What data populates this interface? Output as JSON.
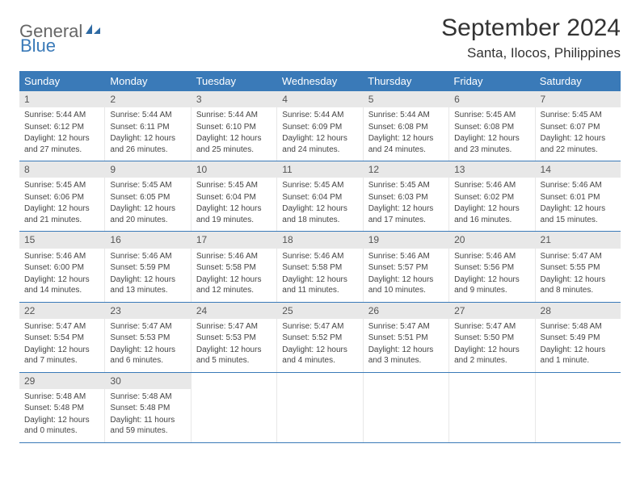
{
  "logo": {
    "word1": "General",
    "word2": "Blue"
  },
  "title": "September 2024",
  "location": "Santa, Ilocos, Philippines",
  "colors": {
    "header_bg": "#3a7ab8",
    "header_fg": "#ffffff",
    "daynum_bg": "#e8e8e8",
    "border": "#3a7ab8",
    "text": "#333333"
  },
  "day_names": [
    "Sunday",
    "Monday",
    "Tuesday",
    "Wednesday",
    "Thursday",
    "Friday",
    "Saturday"
  ],
  "weeks": [
    [
      {
        "n": 1,
        "sr": "5:44 AM",
        "ss": "6:12 PM",
        "dl": "12 hours and 27 minutes."
      },
      {
        "n": 2,
        "sr": "5:44 AM",
        "ss": "6:11 PM",
        "dl": "12 hours and 26 minutes."
      },
      {
        "n": 3,
        "sr": "5:44 AM",
        "ss": "6:10 PM",
        "dl": "12 hours and 25 minutes."
      },
      {
        "n": 4,
        "sr": "5:44 AM",
        "ss": "6:09 PM",
        "dl": "12 hours and 24 minutes."
      },
      {
        "n": 5,
        "sr": "5:44 AM",
        "ss": "6:08 PM",
        "dl": "12 hours and 24 minutes."
      },
      {
        "n": 6,
        "sr": "5:45 AM",
        "ss": "6:08 PM",
        "dl": "12 hours and 23 minutes."
      },
      {
        "n": 7,
        "sr": "5:45 AM",
        "ss": "6:07 PM",
        "dl": "12 hours and 22 minutes."
      }
    ],
    [
      {
        "n": 8,
        "sr": "5:45 AM",
        "ss": "6:06 PM",
        "dl": "12 hours and 21 minutes."
      },
      {
        "n": 9,
        "sr": "5:45 AM",
        "ss": "6:05 PM",
        "dl": "12 hours and 20 minutes."
      },
      {
        "n": 10,
        "sr": "5:45 AM",
        "ss": "6:04 PM",
        "dl": "12 hours and 19 minutes."
      },
      {
        "n": 11,
        "sr": "5:45 AM",
        "ss": "6:04 PM",
        "dl": "12 hours and 18 minutes."
      },
      {
        "n": 12,
        "sr": "5:45 AM",
        "ss": "6:03 PM",
        "dl": "12 hours and 17 minutes."
      },
      {
        "n": 13,
        "sr": "5:46 AM",
        "ss": "6:02 PM",
        "dl": "12 hours and 16 minutes."
      },
      {
        "n": 14,
        "sr": "5:46 AM",
        "ss": "6:01 PM",
        "dl": "12 hours and 15 minutes."
      }
    ],
    [
      {
        "n": 15,
        "sr": "5:46 AM",
        "ss": "6:00 PM",
        "dl": "12 hours and 14 minutes."
      },
      {
        "n": 16,
        "sr": "5:46 AM",
        "ss": "5:59 PM",
        "dl": "12 hours and 13 minutes."
      },
      {
        "n": 17,
        "sr": "5:46 AM",
        "ss": "5:58 PM",
        "dl": "12 hours and 12 minutes."
      },
      {
        "n": 18,
        "sr": "5:46 AM",
        "ss": "5:58 PM",
        "dl": "12 hours and 11 minutes."
      },
      {
        "n": 19,
        "sr": "5:46 AM",
        "ss": "5:57 PM",
        "dl": "12 hours and 10 minutes."
      },
      {
        "n": 20,
        "sr": "5:46 AM",
        "ss": "5:56 PM",
        "dl": "12 hours and 9 minutes."
      },
      {
        "n": 21,
        "sr": "5:47 AM",
        "ss": "5:55 PM",
        "dl": "12 hours and 8 minutes."
      }
    ],
    [
      {
        "n": 22,
        "sr": "5:47 AM",
        "ss": "5:54 PM",
        "dl": "12 hours and 7 minutes."
      },
      {
        "n": 23,
        "sr": "5:47 AM",
        "ss": "5:53 PM",
        "dl": "12 hours and 6 minutes."
      },
      {
        "n": 24,
        "sr": "5:47 AM",
        "ss": "5:53 PM",
        "dl": "12 hours and 5 minutes."
      },
      {
        "n": 25,
        "sr": "5:47 AM",
        "ss": "5:52 PM",
        "dl": "12 hours and 4 minutes."
      },
      {
        "n": 26,
        "sr": "5:47 AM",
        "ss": "5:51 PM",
        "dl": "12 hours and 3 minutes."
      },
      {
        "n": 27,
        "sr": "5:47 AM",
        "ss": "5:50 PM",
        "dl": "12 hours and 2 minutes."
      },
      {
        "n": 28,
        "sr": "5:48 AM",
        "ss": "5:49 PM",
        "dl": "12 hours and 1 minute."
      }
    ],
    [
      {
        "n": 29,
        "sr": "5:48 AM",
        "ss": "5:48 PM",
        "dl": "12 hours and 0 minutes."
      },
      {
        "n": 30,
        "sr": "5:48 AM",
        "ss": "5:48 PM",
        "dl": "11 hours and 59 minutes."
      },
      null,
      null,
      null,
      null,
      null
    ]
  ],
  "labels": {
    "sunrise": "Sunrise:",
    "sunset": "Sunset:",
    "daylight": "Daylight:"
  }
}
